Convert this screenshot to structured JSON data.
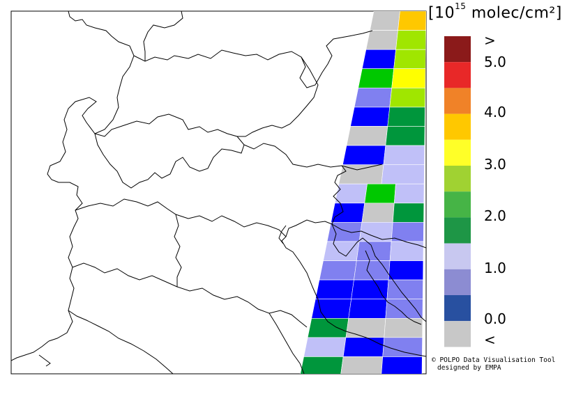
{
  "legend": {
    "unit_prefix": "[10",
    "unit_exponent": "15",
    "unit_suffix": " molec/cm²]",
    "colors": [
      "#8b1a1a",
      "#e82828",
      "#f08228",
      "#ffc800",
      "#ffff28",
      "#a0d232",
      "#46b446",
      "#1e9646",
      "#c8c8f0",
      "#8c8cd2",
      "#2850a0",
      "#c8c8c8"
    ],
    "labels": [
      ">",
      "5.0",
      "4.0",
      "3.0",
      "2.0",
      "1.0",
      "0.0",
      "<"
    ]
  },
  "credit": {
    "line1": "© POLPO Data Visualisation Tool",
    "line2": "designed by EMPA"
  },
  "swath": {
    "colors": {
      "blue": "#0000ff",
      "periwinkle": "#8080f0",
      "lavender": "#c0c0f8",
      "green": "#00c800",
      "dark_green": "#00963c",
      "yellow": "#ffff00",
      "yellow_green": "#a0e600",
      "orange": "#ffc800",
      "gray": "#c8c8c8"
    }
  }
}
